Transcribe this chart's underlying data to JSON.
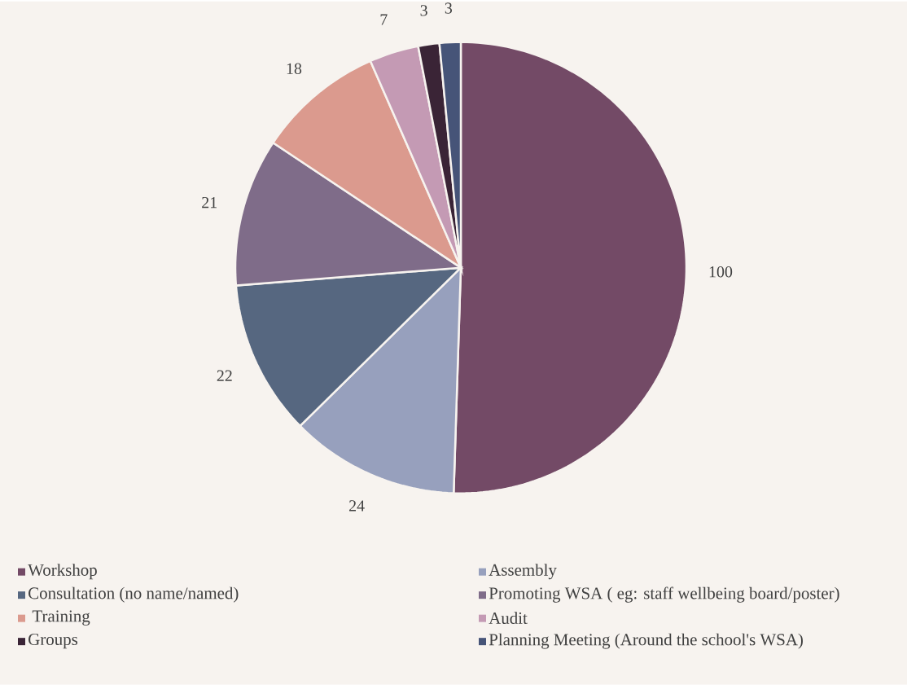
{
  "chart_data": {
    "type": "pie",
    "categories": [
      "Workshop",
      "Assembly",
      "Consultation (no name/named)",
      "Promoting WSA ( eg: staff wellbeing board/poster)",
      " Training",
      "Audit",
      "Groups",
      "Planning Meeting (Around the school's WSA)"
    ],
    "values": [
      100,
      24,
      22,
      21,
      18,
      7,
      3,
      3
    ],
    "colors": [
      "#734a66",
      "#97a0bd",
      "#566780",
      "#7f6c89",
      "#db9a8e",
      "#c49ab4",
      "#3a2436",
      "#465478"
    ],
    "data_labels": true,
    "legend": "bottom"
  }
}
